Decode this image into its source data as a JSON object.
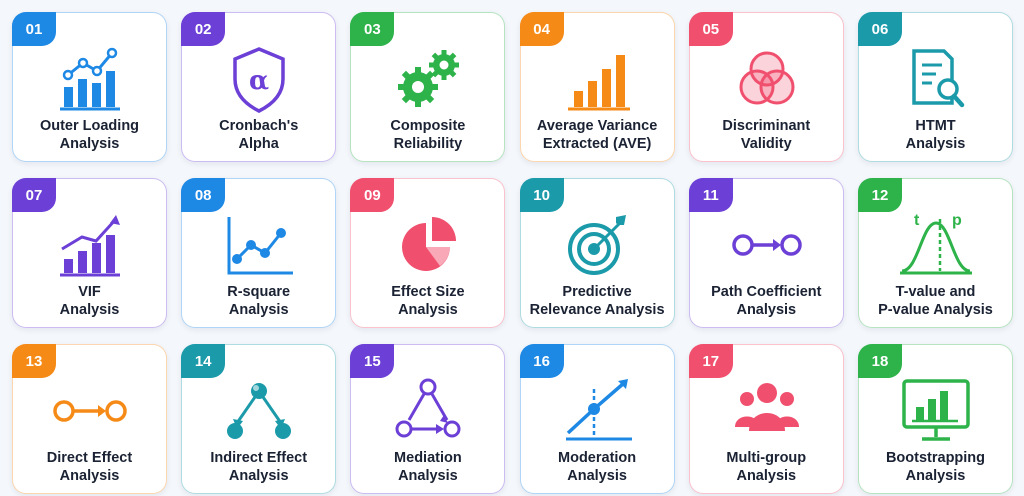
{
  "cards": [
    {
      "number": "01",
      "line1": "Outer Loading",
      "line2": "Analysis",
      "icon": "bar-chart-trend-icon",
      "color": "#1e88e5"
    },
    {
      "number": "02",
      "line1": "Cronbach's",
      "line2": "Alpha",
      "icon": "alpha-shield-icon",
      "color": "#6c3fd6"
    },
    {
      "number": "03",
      "line1": "Composite",
      "line2": "Reliability",
      "icon": "gears-icon",
      "color": "#2db34a"
    },
    {
      "number": "04",
      "line1": "Average Variance",
      "line2": "Extracted (AVE)",
      "icon": "rising-bars-icon",
      "color": "#f58a16"
    },
    {
      "number": "05",
      "line1": "Discriminant",
      "line2": "Validity",
      "icon": "venn-circles-icon",
      "color": "#f0506e"
    },
    {
      "number": "06",
      "line1": "HTMT",
      "line2": "Analysis",
      "icon": "document-search-icon",
      "color": "#1b9aaa"
    },
    {
      "number": "07",
      "line1": "VIF",
      "line2": "Analysis",
      "icon": "bar-chart-arrow-icon",
      "color": "#6c3fd6"
    },
    {
      "number": "08",
      "line1": "R-square",
      "line2": "Analysis",
      "icon": "line-graph-icon",
      "color": "#1e88e5"
    },
    {
      "number": "09",
      "line1": "Effect Size",
      "line2": "Analysis",
      "icon": "pie-chart-icon",
      "color": "#f0506e"
    },
    {
      "number": "10",
      "line1": "Predictive",
      "line2": "Relevance Analysis",
      "icon": "target-icon",
      "color": "#1b9aaa"
    },
    {
      "number": "11",
      "line1": "Path Coefficient",
      "line2": "Analysis",
      "icon": "path-arrow-icon",
      "color": "#6c3fd6"
    },
    {
      "number": "12",
      "line1": "T-value and",
      "line2": "P-value Analysis",
      "icon": "bell-curve-icon",
      "color": "#2db34a",
      "icon_text": {
        "t": "t",
        "p": "p"
      }
    },
    {
      "number": "13",
      "line1": "Direct Effect",
      "line2": "Analysis",
      "icon": "direct-arrow-icon",
      "color": "#f58a16"
    },
    {
      "number": "14",
      "line1": "Indirect Effect",
      "line2": "Analysis",
      "icon": "network-triangle-icon",
      "color": "#1b9aaa"
    },
    {
      "number": "15",
      "line1": "Mediation",
      "line2": "Analysis",
      "icon": "mediation-triangle-icon",
      "color": "#6c3fd6"
    },
    {
      "number": "16",
      "line1": "Moderation",
      "line2": "Analysis",
      "icon": "moderation-graph-icon",
      "color": "#1e88e5"
    },
    {
      "number": "17",
      "line1": "Multi-group",
      "line2": "Analysis",
      "icon": "users-group-icon",
      "color": "#f0506e"
    },
    {
      "number": "18",
      "line1": "Bootstrapping",
      "line2": "Analysis",
      "icon": "monitor-chart-icon",
      "color": "#2db34a"
    }
  ]
}
